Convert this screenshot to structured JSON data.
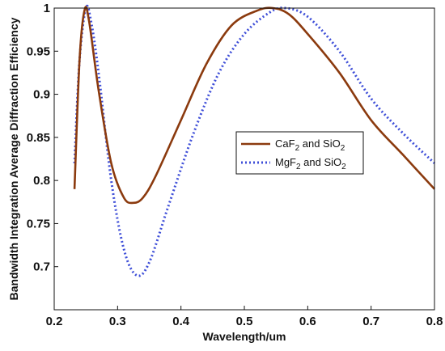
{
  "chart_data": {
    "type": "line",
    "title": "",
    "xlabel": "Wavelength/um",
    "ylabel": "Bandwidth Integration Average Diffraction Efficiency",
    "xlim": [
      0.2,
      0.8
    ],
    "ylim": [
      0.65,
      1.0
    ],
    "xticks": [
      "0.2",
      "0.3",
      "0.4",
      "0.5",
      "0.6",
      "0.7",
      "0.8"
    ],
    "yticks": [
      "0.7",
      "0.75",
      "0.8",
      "0.85",
      "0.9",
      "0.95",
      "1"
    ],
    "grid": false,
    "legend_position": "middle-right",
    "series": [
      {
        "name_main": "CaF",
        "name_sub1": "2",
        "name_mid": " and SiO",
        "name_sub2": "2",
        "color": "#8B3A0E",
        "style": "solid",
        "x": [
          0.232,
          0.24,
          0.248,
          0.255,
          0.27,
          0.29,
          0.31,
          0.325,
          0.34,
          0.36,
          0.4,
          0.44,
          0.48,
          0.52,
          0.545,
          0.57,
          0.6,
          0.65,
          0.7,
          0.75,
          0.8
        ],
        "y": [
          0.79,
          0.94,
          0.998,
          0.985,
          0.905,
          0.82,
          0.78,
          0.774,
          0.78,
          0.805,
          0.87,
          0.935,
          0.98,
          0.997,
          1.0,
          0.993,
          0.97,
          0.925,
          0.87,
          0.83,
          0.79
        ]
      },
      {
        "name_main": "MgF",
        "name_sub1": "2",
        "name_mid": " and SiO",
        "name_sub2": "2",
        "color": "#3F4FD8",
        "style": "dotted",
        "x": [
          0.232,
          0.24,
          0.25,
          0.258,
          0.27,
          0.29,
          0.31,
          0.33,
          0.35,
          0.38,
          0.42,
          0.46,
          0.5,
          0.54,
          0.565,
          0.6,
          0.65,
          0.7,
          0.75,
          0.8
        ],
        "y": [
          0.82,
          0.94,
          1.0,
          0.985,
          0.925,
          0.8,
          0.72,
          0.69,
          0.705,
          0.77,
          0.855,
          0.925,
          0.97,
          0.995,
          1.0,
          0.99,
          0.95,
          0.895,
          0.855,
          0.82
        ]
      }
    ]
  }
}
